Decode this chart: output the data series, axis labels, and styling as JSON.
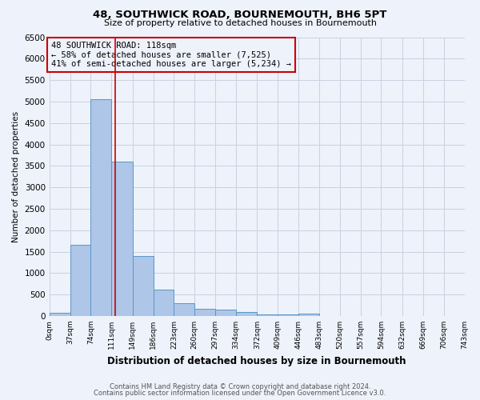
{
  "title": "48, SOUTHWICK ROAD, BOURNEMOUTH, BH6 5PT",
  "subtitle": "Size of property relative to detached houses in Bournemouth",
  "xlabel": "Distribution of detached houses by size in Bournemouth",
  "ylabel": "Number of detached properties",
  "footnote1": "Contains HM Land Registry data © Crown copyright and database right 2024.",
  "footnote2": "Contains public sector information licensed under the Open Government Licence v3.0.",
  "annotation_line1": "48 SOUTHWICK ROAD: 118sqm",
  "annotation_line2": "← 58% of detached houses are smaller (7,525)",
  "annotation_line3": "41% of semi-detached houses are larger (5,234) →",
  "bar_edges": [
    0,
    37,
    74,
    111,
    149,
    186,
    223,
    260,
    297,
    334,
    372,
    409,
    446,
    483,
    520,
    557,
    594,
    632,
    669,
    706,
    743
  ],
  "bar_heights": [
    75,
    1650,
    5050,
    3600,
    1400,
    610,
    300,
    160,
    140,
    95,
    45,
    35,
    55,
    0,
    0,
    0,
    0,
    0,
    0,
    0
  ],
  "bar_color": "#aec6e8",
  "bar_edge_color": "#5a96c8",
  "vline_x": 118,
  "vline_color": "#cc0000",
  "ylim": [
    0,
    6500
  ],
  "yticks": [
    0,
    500,
    1000,
    1500,
    2000,
    2500,
    3000,
    3500,
    4000,
    4500,
    5000,
    5500,
    6000,
    6500
  ],
  "grid_color": "#c8d0e0",
  "background_color": "#eef2fb",
  "annotation_box_color": "#cc0000",
  "tick_labels": [
    "0sqm",
    "37sqm",
    "74sqm",
    "111sqm",
    "149sqm",
    "186sqm",
    "223sqm",
    "260sqm",
    "297sqm",
    "334sqm",
    "372sqm",
    "409sqm",
    "446sqm",
    "483sqm",
    "520sqm",
    "557sqm",
    "594sqm",
    "632sqm",
    "669sqm",
    "706sqm",
    "743sqm"
  ]
}
